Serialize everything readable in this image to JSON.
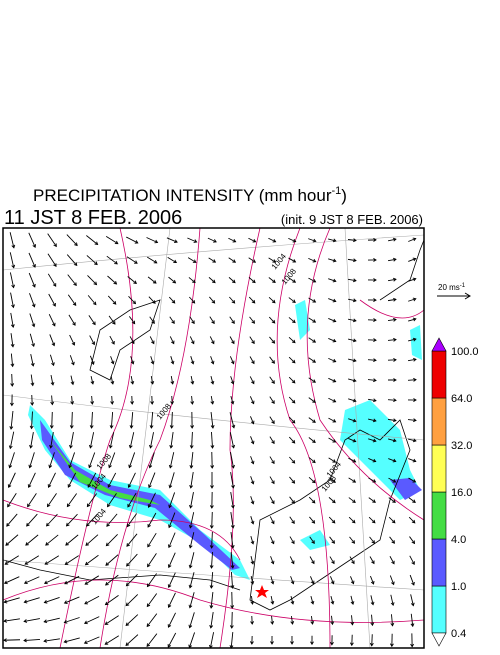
{
  "title": {
    "main": "PRECIPITATION INTENSITY (mm hour",
    "exponent": "-1",
    "end": ")"
  },
  "valid_time": "11 JST 8 FEB. 2006",
  "init_time": "(init. 9 JST 8 FEB. 2006)",
  "wind_scale": {
    "label": "20 ms",
    "exponent": "-1"
  },
  "colorbar": {
    "levels": [
      {
        "value": 0.4,
        "label": "0.4"
      },
      {
        "value": 1,
        "label": "1.0"
      },
      {
        "value": 4,
        "label": "4.0"
      },
      {
        "value": 16,
        "label": "16.0"
      },
      {
        "value": 32,
        "label": "32.0"
      },
      {
        "value": 64,
        "label": "64.0"
      },
      {
        "value": 100,
        "label": "100.0"
      }
    ],
    "colors": [
      "#55ffff",
      "#5a5aff",
      "#44dd44",
      "#ffff55",
      "#ffa040",
      "#ee0000"
    ],
    "under_color": "#ffffff",
    "over_color": "#aa00ff"
  },
  "isobar_labels": [
    1008,
    1004,
    1008,
    1004,
    1008,
    1004,
    1008,
    1004
  ]
}
